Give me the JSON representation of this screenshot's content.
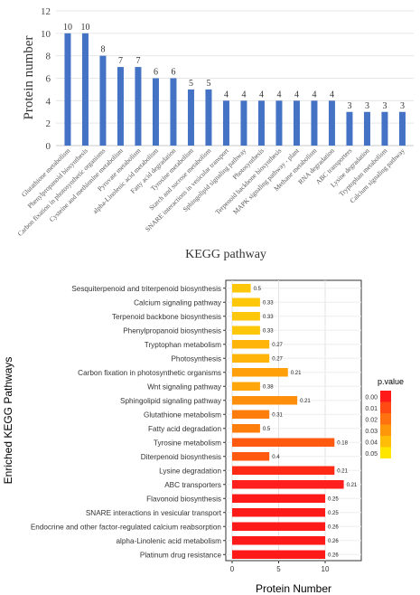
{
  "chart_data": [
    {
      "type": "bar",
      "title": "",
      "xlabel": "KEGG pathway",
      "ylabel": "Protein number",
      "ylim": [
        0,
        12
      ],
      "yticks": [
        0,
        2,
        4,
        6,
        8,
        10,
        12
      ],
      "grid": true,
      "bar_color": "#4472c4",
      "categories": [
        "Glutathione metabolism",
        "Phenylpropanoid biosynthesis",
        "Carbon fixation in photosynthetic organisms",
        "Cysteine and methionine metabolism",
        "Pyruvate metabolism",
        "alpha-Linolenic acid metabolism",
        "Fatty acid degradation",
        "Tyrosine metabolism",
        "Starch and sucrose metabolism",
        "SNARE interactions in vesicular transport",
        "Sphingolipid signaling pathway",
        "Photosynthesis",
        "Terpenoid backbone biosynthesis",
        "MAPK signaling pathway - plant",
        "Methane metabolism",
        "RNA degradation",
        "ABC transporters",
        "Lysine degradation",
        "Tryptophan metabolism",
        "Calcium signaling pathway"
      ],
      "values": [
        10,
        10,
        8,
        7,
        7,
        6,
        6,
        5,
        5,
        4,
        4,
        4,
        4,
        4,
        4,
        4,
        3,
        3,
        3,
        3
      ]
    },
    {
      "type": "bar",
      "orientation": "horizontal",
      "title": "",
      "xlabel": "Protein Number",
      "ylabel": "Enriched KEGG Pathways",
      "xlim": [
        0,
        14
      ],
      "xticks": [
        0,
        5,
        10
      ],
      "grid": true,
      "legend": {
        "title": "p.value",
        "position": "right",
        "entries": [
          {
            "label": "0.00",
            "color": "#ff1a1a"
          },
          {
            "label": "0.01",
            "color": "#ff4a14"
          },
          {
            "label": "0.02",
            "color": "#ff720f"
          },
          {
            "label": "0.03",
            "color": "#ff970b"
          },
          {
            "label": "0.04",
            "color": "#ffbd07"
          },
          {
            "label": "0.05",
            "color": "#ffe600"
          }
        ]
      },
      "categories": [
        "Sesquiterpenoid and triterpenoid biosynthesis",
        "Calcium signaling pathway",
        "Terpenoid backbone biosynthesis",
        "Phenylpropanoid biosynthesis",
        "Tryptophan metabolism",
        "Photosynthesis",
        "Carbon fixation in photosynthetic organisms",
        "Wnt signaling pathway",
        "Sphingolipid signaling pathway",
        "Glutathione metabolism",
        "Fatty acid degradation",
        "Tyrosine metabolism",
        "Diterpenoid biosynthesis",
        "Lysine degradation",
        "ABC transporters",
        "Flavonoid biosynthesis",
        "SNARE interactions in vesicular transport",
        "Endocrine and other factor-regulated calcium reabsorption",
        "alpha-Linolenic acid metabolism",
        "Platinum drug resistance"
      ],
      "values": [
        2,
        3,
        3,
        3,
        4,
        4,
        6,
        3,
        7,
        4,
        3,
        11,
        4,
        11,
        12,
        10,
        10,
        10,
        10,
        10
      ],
      "labels": [
        "0.5",
        "0.33",
        "0.33",
        "0.33",
        "0.27",
        "0.27",
        "0.21",
        "0.38",
        "0.21",
        "0.31",
        "0.5",
        "0.18",
        "0.4",
        "0.21",
        "0.21",
        "0.25",
        "0.25",
        "0.26",
        "0.26",
        "0.26"
      ],
      "colors": [
        "#ffc70a",
        "#ffc70a",
        "#ffc70a",
        "#ffc70a",
        "#ffb40a",
        "#ffb40a",
        "#ffa00a",
        "#ffa60a",
        "#ff8f0a",
        "#ff7d0a",
        "#ff7d0a",
        "#ff5a10",
        "#ff5a10",
        "#ff2a14",
        "#ff1e1e",
        "#ff1a1a",
        "#ff1a1a",
        "#ff1a1a",
        "#ff1a1a",
        "#ff1a1a"
      ]
    }
  ]
}
